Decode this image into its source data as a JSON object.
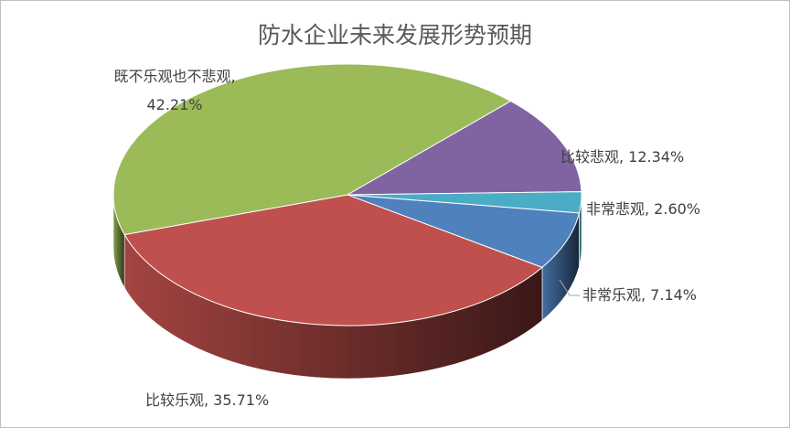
{
  "chart_data": {
    "type": "pie3d",
    "title": "防水企业未来发展形势预期",
    "categories": [
      "非常乐观",
      "比较乐观",
      "既不乐观也不悲观",
      "比较悲观",
      "非常悲观"
    ],
    "values": [
      7.14,
      35.71,
      42.21,
      12.34,
      2.6
    ],
    "value_labels": [
      "非常乐观, 7.14%",
      "比较乐观, 35.71%",
      "既不乐观也不悲观, 42.21%",
      "比较悲观, 12.34%",
      "非常悲观, 2.60%"
    ],
    "colors": [
      "#4f81bd",
      "#c0504d",
      "#9bbb59",
      "#8064a2",
      "#4bacc6"
    ]
  }
}
